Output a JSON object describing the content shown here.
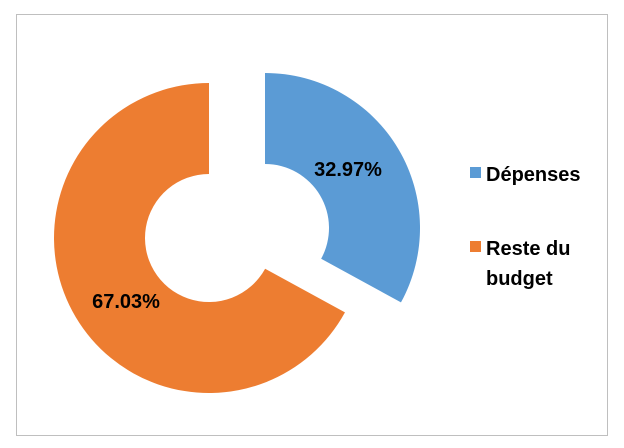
{
  "chart_data": {
    "type": "pie",
    "subtype": "doughnut-exploded",
    "title": "",
    "slices": [
      {
        "label": "Dépenses",
        "value": 32.97,
        "display": "32.97%",
        "color": "#5b9bd5"
      },
      {
        "label": "Reste du budget",
        "value": 67.03,
        "display": "67.03%",
        "color": "#ed7d31"
      }
    ],
    "legend_position": "right"
  }
}
